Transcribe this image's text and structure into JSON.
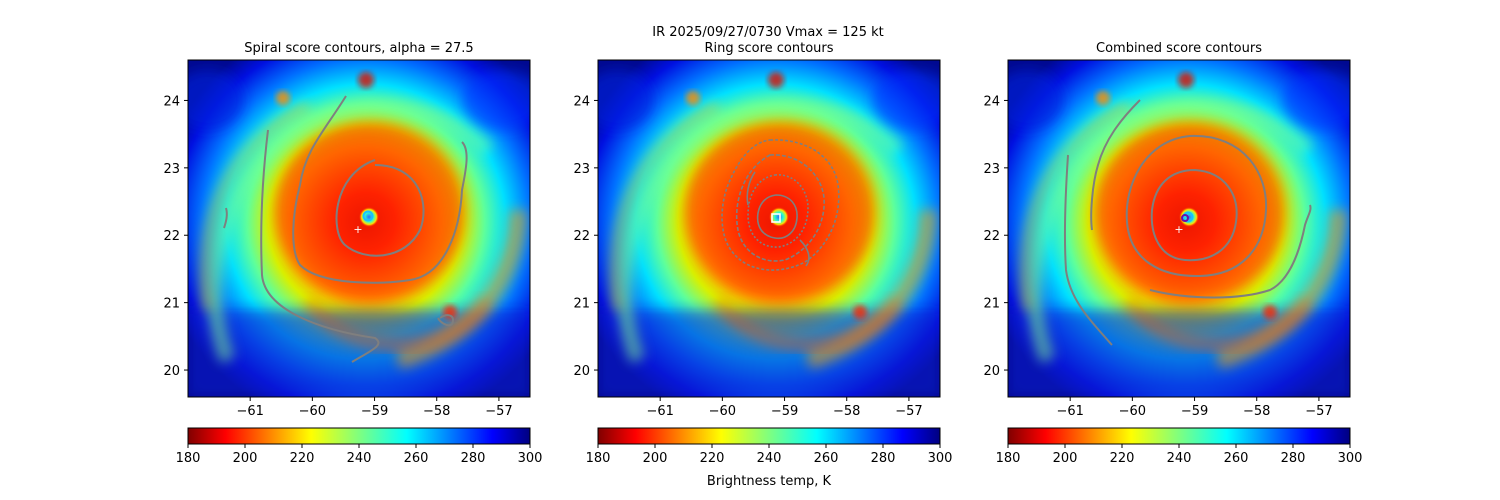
{
  "figure": {
    "suptitle_line1": "IR  2025/09/27/0730    Vmax = 125 kt",
    "colorbar_label": "Brightness temp, K"
  },
  "chart_data": [
    {
      "type": "heatmap",
      "title": "Spiral score contours, alpha = 27.5",
      "xlim": [
        -62.0,
        -56.5
      ],
      "ylim": [
        19.6,
        24.6
      ],
      "xticks": [
        "−61",
        "−60",
        "−59",
        "−58",
        "−57"
      ],
      "yticks": [
        "20",
        "21",
        "22",
        "23",
        "24"
      ],
      "xtick_values": [
        -61,
        -60,
        -59,
        -58,
        -57
      ],
      "ytick_values": [
        20,
        21,
        22,
        23,
        24
      ],
      "center": [
        -59.03,
        22.3
      ],
      "best_track_marker": [
        -59.2,
        22.12
      ],
      "colorbar": {
        "min": 180,
        "max": 300,
        "ticks": [
          "180",
          "200",
          "220",
          "240",
          "260",
          "280",
          "300"
        ],
        "colormap": "jet_r"
      }
    },
    {
      "type": "heatmap",
      "title": "Ring score contours",
      "xlim": [
        -62.0,
        -56.5
      ],
      "ylim": [
        19.6,
        24.6
      ],
      "xticks": [
        "−61",
        "−60",
        "−59",
        "−58",
        "−57"
      ],
      "yticks": [
        "20",
        "21",
        "22",
        "23",
        "24"
      ],
      "xtick_values": [
        -61,
        -60,
        -59,
        -58,
        -57
      ],
      "ytick_values": [
        20,
        21,
        22,
        23,
        24
      ],
      "center": [
        -59.03,
        22.3
      ],
      "ring_center_marker": [
        -59.0,
        22.28
      ],
      "colorbar": {
        "min": 180,
        "max": 300,
        "ticks": [
          "180",
          "200",
          "220",
          "240",
          "260",
          "280",
          "300"
        ],
        "colormap": "jet_r"
      }
    },
    {
      "type": "heatmap",
      "title": "Combined score contours",
      "xlim": [
        -62.0,
        -56.5
      ],
      "ylim": [
        19.6,
        24.6
      ],
      "xticks": [
        "−61",
        "−60",
        "−59",
        "−58",
        "−57"
      ],
      "yticks": [
        "20",
        "21",
        "22",
        "23",
        "24"
      ],
      "xtick_values": [
        -61,
        -60,
        -59,
        -58,
        -57
      ],
      "ytick_values": [
        20,
        21,
        22,
        23,
        24
      ],
      "center": [
        -59.03,
        22.3
      ],
      "best_track_marker": [
        -59.2,
        22.12
      ],
      "combined_center_marker": [
        -59.05,
        22.28
      ],
      "colorbar": {
        "min": 180,
        "max": 300,
        "ticks": [
          "180",
          "200",
          "220",
          "240",
          "260",
          "280",
          "300"
        ],
        "colormap": "jet_r"
      }
    }
  ],
  "colors": {
    "contour": "#7f7f7f",
    "marker_white": "#ffffff",
    "marker_purple": "#6a0dad"
  }
}
